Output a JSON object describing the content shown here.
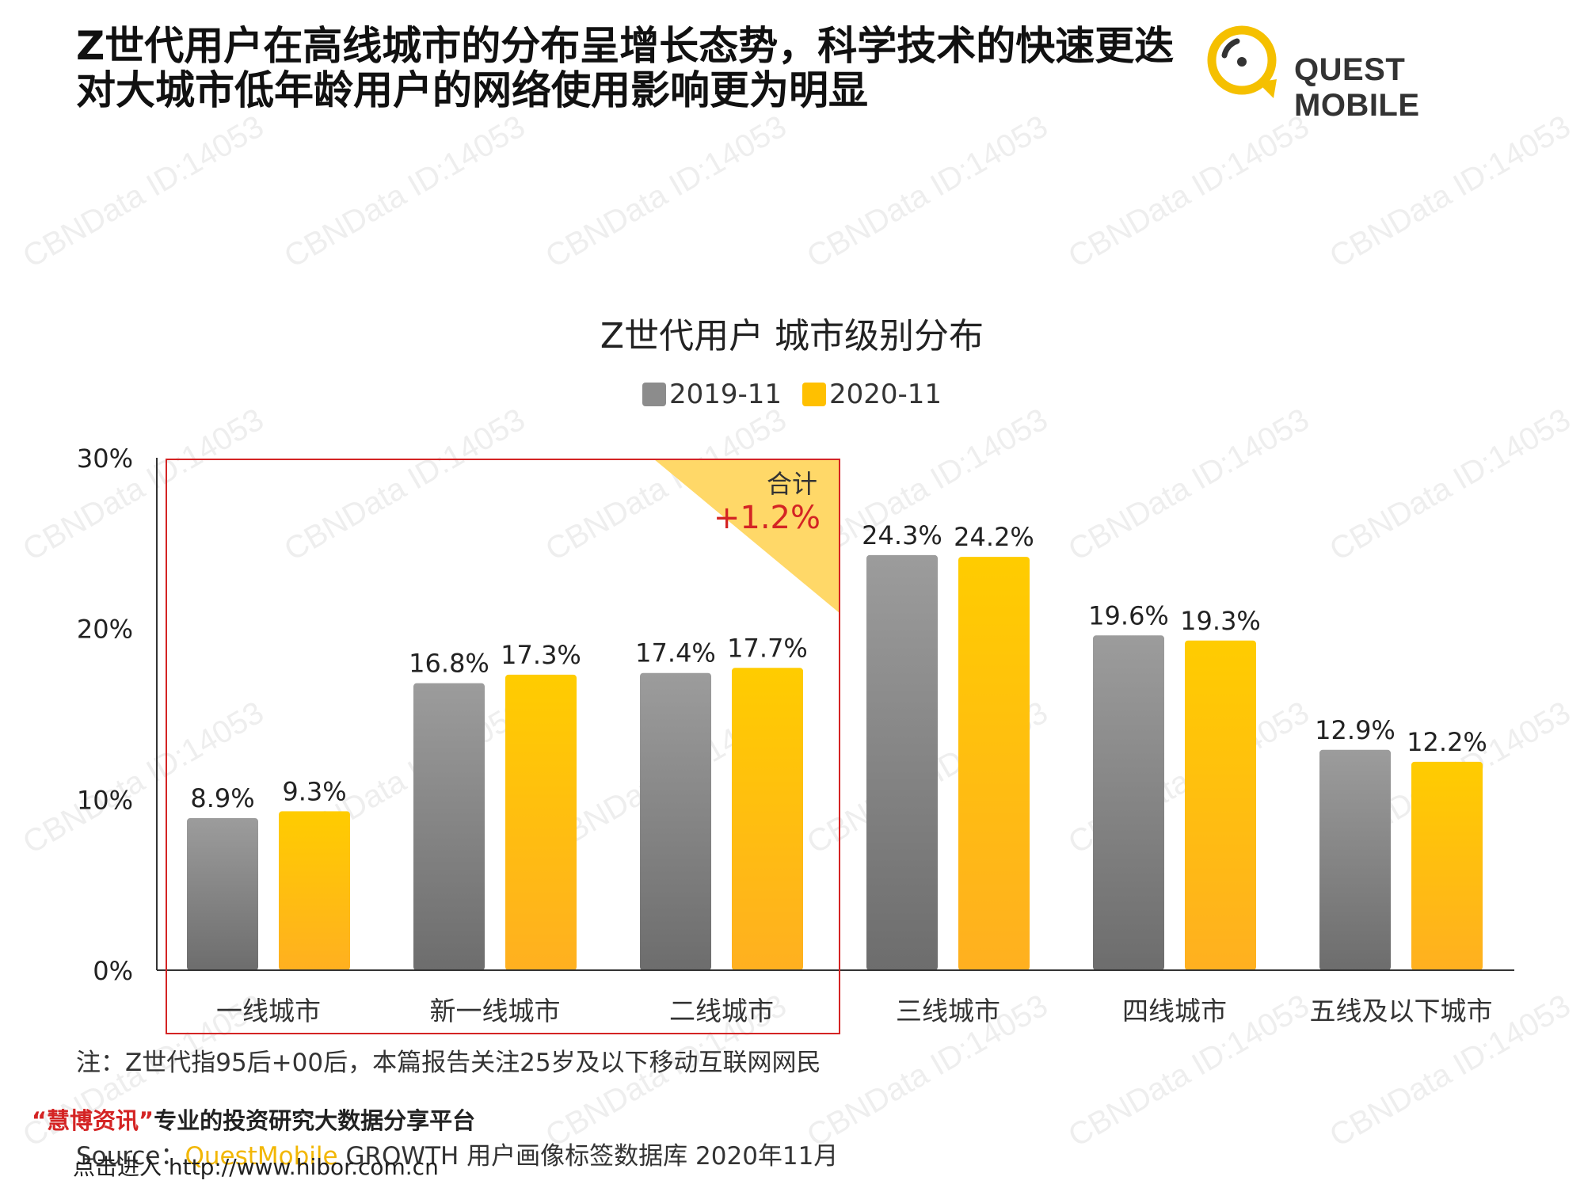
{
  "headline": {
    "line1": "Z世代用户在高线城市的分布呈增长态势，科学技术的快速更迭",
    "line2": "对大城市低年龄用户的网络使用影响更为明显"
  },
  "logo": {
    "text": "QUEST MOBILE",
    "accent_color": "#F5C000"
  },
  "chart_data": {
    "type": "bar",
    "title": "Z世代用户 城市级别分布",
    "categories": [
      "一线城市",
      "新一线城市",
      "二线城市",
      "三线城市",
      "四线城市",
      "五线及以下城市"
    ],
    "series": [
      {
        "name": "2019-11",
        "values": [
          8.9,
          16.8,
          17.4,
          24.3,
          19.6,
          12.9
        ],
        "labels": [
          "8.9%",
          "16.8%",
          "17.4%",
          "24.3%",
          "19.6%",
          "12.9%"
        ],
        "color": "#8C8C8C"
      },
      {
        "name": "2020-11",
        "values": [
          9.3,
          17.3,
          17.7,
          24.2,
          19.3,
          12.2
        ],
        "labels": [
          "9.3%",
          "17.3%",
          "17.7%",
          "24.2%",
          "19.3%",
          "12.2%"
        ],
        "color": "#FFC000"
      }
    ],
    "y_ticks": [
      "0%",
      "10%",
      "20%",
      "30%"
    ],
    "ylim": [
      0,
      30
    ],
    "legend_position": "top-center",
    "grid": false,
    "annotation": {
      "label": "合计",
      "value": "+1.2%",
      "highlight_color": "#FFD868",
      "box_color": "#D42424"
    }
  },
  "footer": {
    "note": "注：Z世代指95后+00后，本篇报告关注25岁及以下移动互联网网民",
    "promo_red": "“慧博资讯”",
    "promo_rest": "专业的投资研究大数据分享平台",
    "source_prefix": "Source：",
    "source_brand": "QuestMobile",
    "source_rest": " GROWTH 用户画像标签数据库 2020年11月",
    "link_text": "点击进入 http://www.hibor.com.cn"
  },
  "watermark": "CBNData ID:14053"
}
